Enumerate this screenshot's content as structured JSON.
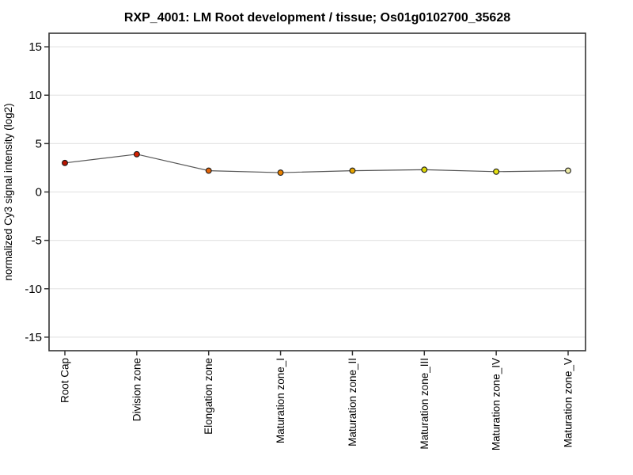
{
  "page": {
    "background": "#ffffff"
  },
  "chart_data": {
    "type": "line",
    "title": "RXP_4001: LM Root development / tissue; Os01g0102700_35628",
    "xlabel": "",
    "ylabel": "normalized Cy3 signal intensity (log2)",
    "categories": [
      "Root Cap",
      "Division zone",
      "Elongation zone",
      "Maturation zone_I",
      "Maturation zone_II",
      "Maturation zone_III",
      "Maturation zone_IV",
      "Maturation zone_V"
    ],
    "values": [
      3.0,
      3.9,
      2.2,
      2.0,
      2.2,
      2.3,
      2.1,
      2.2
    ],
    "point_colors": [
      "#b81400",
      "#d42100",
      "#e2640a",
      "#e98000",
      "#e6a400",
      "#ddd705",
      "#e6e113",
      "#edeba6"
    ],
    "yticks": [
      -15,
      -10,
      -5,
      0,
      5,
      10,
      15
    ],
    "ylim": [
      -16.4,
      16.4
    ],
    "grid": true,
    "legend": "none",
    "line_color": "#555555",
    "point_outline_color": "#1a1a1a",
    "frame_color": "#333333",
    "grid_color": "#e6e6e6",
    "tick_color": "#333333"
  }
}
